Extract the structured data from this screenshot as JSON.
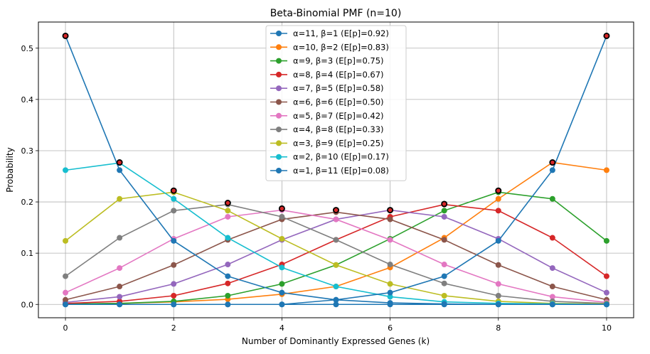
{
  "chart_data": {
    "type": "line",
    "title": "Beta-Binomial PMF (n=10)",
    "xlabel": "Number of Dominantly Expressed Genes (k)",
    "ylabel": "Probability",
    "xlim": [
      -0.5,
      10.5
    ],
    "ylim": [
      -0.026,
      0.551
    ],
    "grid": true,
    "legend_position": "top-center",
    "x": [
      0,
      1,
      2,
      3,
      4,
      5,
      6,
      7,
      8,
      9,
      10
    ],
    "xticks": [
      "0",
      "2",
      "4",
      "6",
      "8",
      "10"
    ],
    "xtick_values": [
      0,
      2,
      4,
      6,
      8,
      10
    ],
    "yticks": [
      "0.0",
      "0.1",
      "0.2",
      "0.3",
      "0.4",
      "0.5"
    ],
    "ytick_values": [
      0.0,
      0.1,
      0.2,
      0.3,
      0.4,
      0.5
    ],
    "series": [
      {
        "name": "α=11, β=1 (E[p]=0.92)",
        "color": "#1f77b4",
        "values": [
          0.0,
          0.0,
          0.0,
          0.0,
          0.0,
          0.0,
          0.0,
          0.0,
          0.0,
          0.0,
          0.0
        ]
      },
      {
        "name": "α=10, β=2 (E[p]=0.83)",
        "color": "#ff7f0e",
        "values": [
          0.0004,
          0.002,
          0.005,
          0.01,
          0.02,
          0.035,
          0.072,
          0.13,
          0.206,
          0.277,
          0.262
        ]
      },
      {
        "name": "α=9, β=3 (E[p]=0.75)",
        "color": "#2ca02c",
        "values": [
          0.001,
          0.002,
          0.006,
          0.017,
          0.04,
          0.077,
          0.128,
          0.183,
          0.219,
          0.206,
          0.124
        ]
      },
      {
        "name": "α=8, β=4 (E[p]=0.67)",
        "color": "#d62728",
        "values": [
          0.002,
          0.006,
          0.017,
          0.041,
          0.078,
          0.126,
          0.171,
          0.195,
          0.183,
          0.13,
          0.055
        ]
      },
      {
        "name": "α=7, β=5 (E[p]=0.58)",
        "color": "#9467bd",
        "values": [
          0.004,
          0.015,
          0.04,
          0.078,
          0.126,
          0.166,
          0.184,
          0.171,
          0.128,
          0.071,
          0.023
        ]
      },
      {
        "name": "α=6, β=6 (E[p]=0.50)",
        "color": "#8c564b",
        "values": [
          0.009,
          0.035,
          0.077,
          0.126,
          0.166,
          0.18,
          0.166,
          0.126,
          0.077,
          0.035,
          0.009
        ]
      },
      {
        "name": "α=5, β=7 (E[p]=0.42)",
        "color": "#e377c2",
        "values": [
          0.023,
          0.071,
          0.128,
          0.171,
          0.184,
          0.166,
          0.126,
          0.078,
          0.04,
          0.015,
          0.004
        ]
      },
      {
        "name": "α=4, β=8 (E[p]=0.33)",
        "color": "#7f7f7f",
        "values": [
          0.055,
          0.13,
          0.183,
          0.195,
          0.171,
          0.126,
          0.078,
          0.041,
          0.017,
          0.006,
          0.002
        ]
      },
      {
        "name": "α=3, β=9 (E[p]=0.25)",
        "color": "#bcbd22",
        "values": [
          0.124,
          0.206,
          0.219,
          0.183,
          0.128,
          0.077,
          0.04,
          0.017,
          0.006,
          0.002,
          0.001
        ]
      },
      {
        "name": "α=2, β=10 (E[p]=0.17)",
        "color": "#17becf",
        "values": [
          0.262,
          0.276,
          0.206,
          0.13,
          0.072,
          0.035,
          0.015,
          0.005,
          0.002,
          0.001,
          0.0
        ]
      },
      {
        "name": "α=1, β=11 (E[p]=0.08)",
        "color": "#1f77b4",
        "values": [
          0.524,
          0.262,
          0.124,
          0.055,
          0.023,
          0.009,
          0.003,
          0.001,
          0.0,
          0.0,
          0.0
        ]
      },
      {
        "name": "",
        "color": "#1f77b4",
        "values": [
          0.0,
          0.0,
          0.0,
          0.0,
          0.0,
          0.009,
          0.023,
          0.055,
          0.124,
          0.262,
          0.524
        ]
      }
    ],
    "max_markers": {
      "marker": "black ring with red center",
      "values": [
        0.524,
        0.277,
        0.222,
        0.198,
        0.187,
        0.184,
        0.184,
        0.196,
        0.222,
        0.277,
        0.524
      ]
    }
  }
}
